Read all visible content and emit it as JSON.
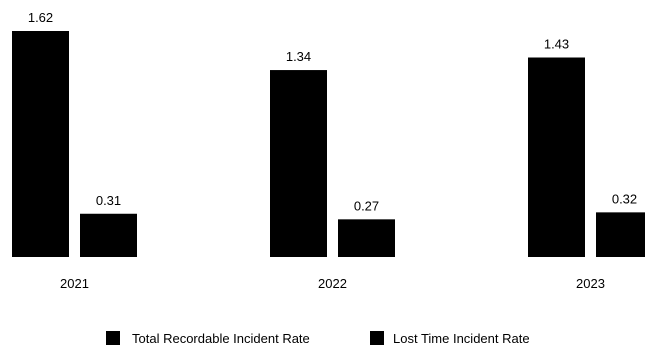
{
  "chart_data": {
    "type": "bar",
    "categories": [
      "2021",
      "2022",
      "2023"
    ],
    "series": [
      {
        "name": "Total Recordable Incident Rate",
        "values": [
          1.62,
          1.34,
          1.43
        ],
        "color": "#000000"
      },
      {
        "name": "Lost Time Incident Rate",
        "values": [
          0.31,
          0.27,
          0.32
        ],
        "color": "#000000"
      }
    ],
    "value_labels": [
      [
        "1.62",
        "0.31"
      ],
      [
        "1.34",
        "0.27"
      ],
      [
        "1.43",
        "0.32"
      ]
    ],
    "title": "",
    "xlabel": "",
    "ylabel": "",
    "ylim": [
      0,
      1.62
    ],
    "grid": false,
    "legend_position": "bottom-center"
  }
}
